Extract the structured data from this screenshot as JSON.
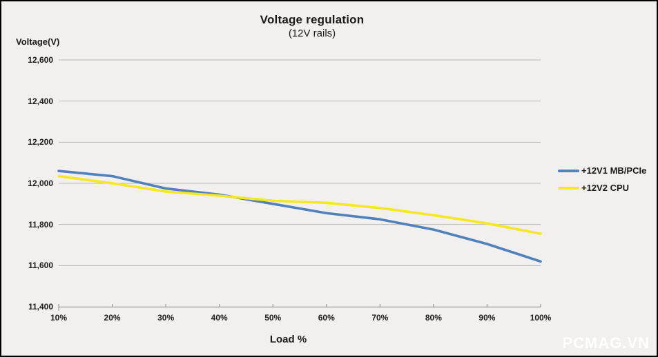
{
  "watermark": "PCMAG.VN",
  "colors": {
    "background": "#f1f0ee",
    "border": "#000000",
    "gridline": "#b9b7b4",
    "axis": "#9a9896",
    "text": "#1a1a1a",
    "watermark": "#ffffff",
    "series_blue": "#4f81bd",
    "series_yellow": "#f4e81e"
  },
  "chart_data": {
    "type": "line",
    "title": "Voltage regulation",
    "subtitle": "(12V rails)",
    "y_axis_title": "Voltage(V)",
    "x_axis_title": "Load %",
    "x_categories": [
      "10%",
      "20%",
      "30%",
      "40%",
      "50%",
      "60%",
      "70%",
      "80%",
      "90%",
      "100%"
    ],
    "y_ticks": [
      11400,
      11600,
      11800,
      12000,
      12200,
      12400,
      12600
    ],
    "y_tick_labels": [
      "11,400",
      "11,600",
      "11,800",
      "12,000",
      "12,200",
      "12,400",
      "12,600"
    ],
    "ylim": [
      11400,
      12600
    ],
    "grid": "horizontal",
    "legend_position": "right",
    "series": [
      {
        "name": "+12V1 MB/PCIe",
        "color": "#4f81bd",
        "values": [
          12060,
          12035,
          11975,
          11945,
          11900,
          11855,
          11825,
          11775,
          11705,
          11620
        ]
      },
      {
        "name": "+12V2 CPU",
        "color": "#f4e81e",
        "values": [
          12035,
          12000,
          11960,
          11940,
          11915,
          11905,
          11880,
          11845,
          11805,
          11755
        ]
      }
    ]
  }
}
